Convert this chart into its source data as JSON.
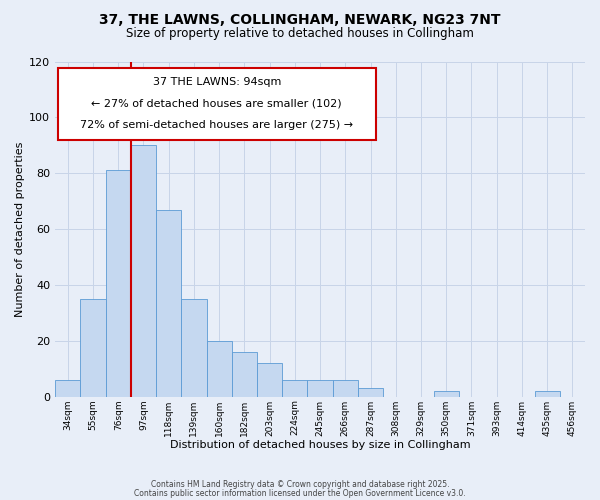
{
  "title_line1": "37, THE LAWNS, COLLINGHAM, NEWARK, NG23 7NT",
  "title_line2": "Size of property relative to detached houses in Collingham",
  "xlabel": "Distribution of detached houses by size in Collingham",
  "ylabel": "Number of detached properties",
  "bar_labels": [
    "34sqm",
    "55sqm",
    "76sqm",
    "97sqm",
    "118sqm",
    "139sqm",
    "160sqm",
    "182sqm",
    "203sqm",
    "224sqm",
    "245sqm",
    "266sqm",
    "287sqm",
    "308sqm",
    "329sqm",
    "350sqm",
    "371sqm",
    "393sqm",
    "414sqm",
    "435sqm",
    "456sqm"
  ],
  "bar_values": [
    6,
    35,
    81,
    90,
    67,
    35,
    20,
    16,
    12,
    6,
    6,
    6,
    3,
    0,
    0,
    2,
    0,
    0,
    0,
    2,
    0
  ],
  "bar_color": "#c5d8f0",
  "bar_edge_color": "#5b9bd5",
  "ylim": [
    0,
    120
  ],
  "yticks": [
    0,
    20,
    40,
    60,
    80,
    100,
    120
  ],
  "annotation_line1": "37 THE LAWNS: 94sqm",
  "annotation_line2": "← 27% of detached houses are smaller (102)",
  "annotation_line3": "72% of semi-detached houses are larger (275) →",
  "annotation_box_color": "#ffffff",
  "annotation_box_edge_color": "#cc0000",
  "red_line_color": "#cc0000",
  "grid_color": "#c8d4e8",
  "background_color": "#e8eef8",
  "footer_line1": "Contains HM Land Registry data © Crown copyright and database right 2025.",
  "footer_line2": "Contains public sector information licensed under the Open Government Licence v3.0.",
  "red_line_x": 2.5
}
